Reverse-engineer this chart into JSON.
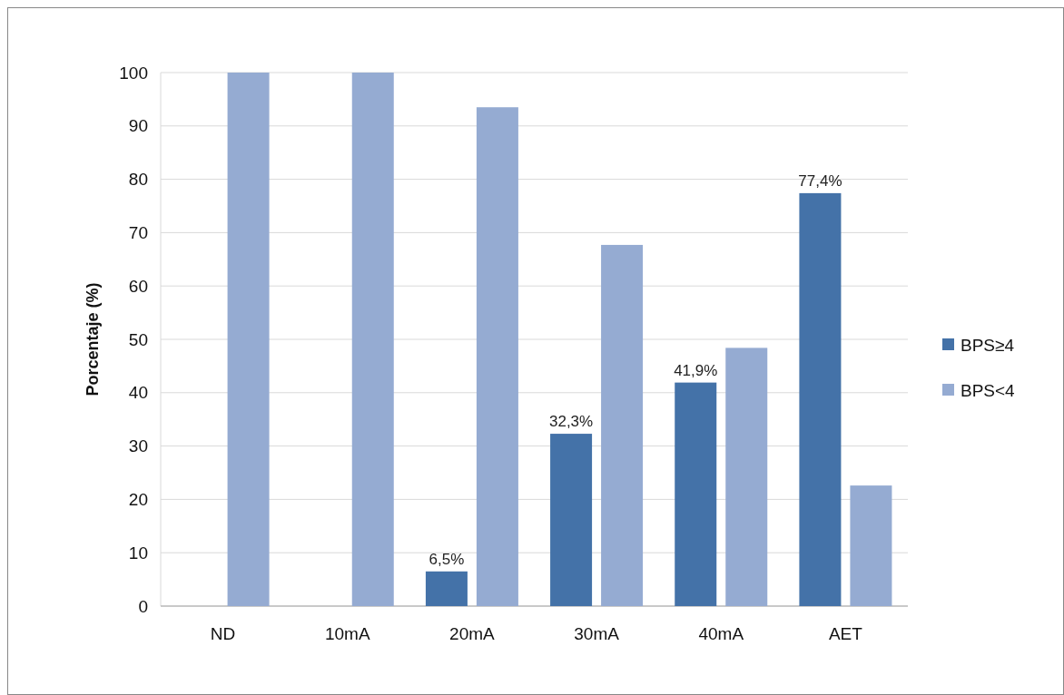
{
  "chart_data": {
    "type": "bar",
    "ylabel": "Porcentaje (%)",
    "categories": [
      "ND",
      "10mA",
      "20mA",
      "30mA",
      "40mA",
      "AET"
    ],
    "series": [
      {
        "name": "BPS≥4",
        "color": "#4472a8",
        "values": [
          0,
          0,
          6.5,
          32.3,
          41.9,
          77.4
        ],
        "value_labels": [
          null,
          null,
          "6,5%",
          "32,3%",
          "41,9%",
          "77,4%"
        ]
      },
      {
        "name": "BPS<4",
        "color": "#95abd2",
        "values": [
          100,
          100,
          93.5,
          67.7,
          48.4,
          22.6
        ]
      }
    ],
    "ylim": [
      0,
      100
    ],
    "yticks": [
      0,
      10,
      20,
      30,
      40,
      50,
      60,
      70,
      80,
      90,
      100
    ],
    "grid": "y",
    "legend": "right"
  }
}
